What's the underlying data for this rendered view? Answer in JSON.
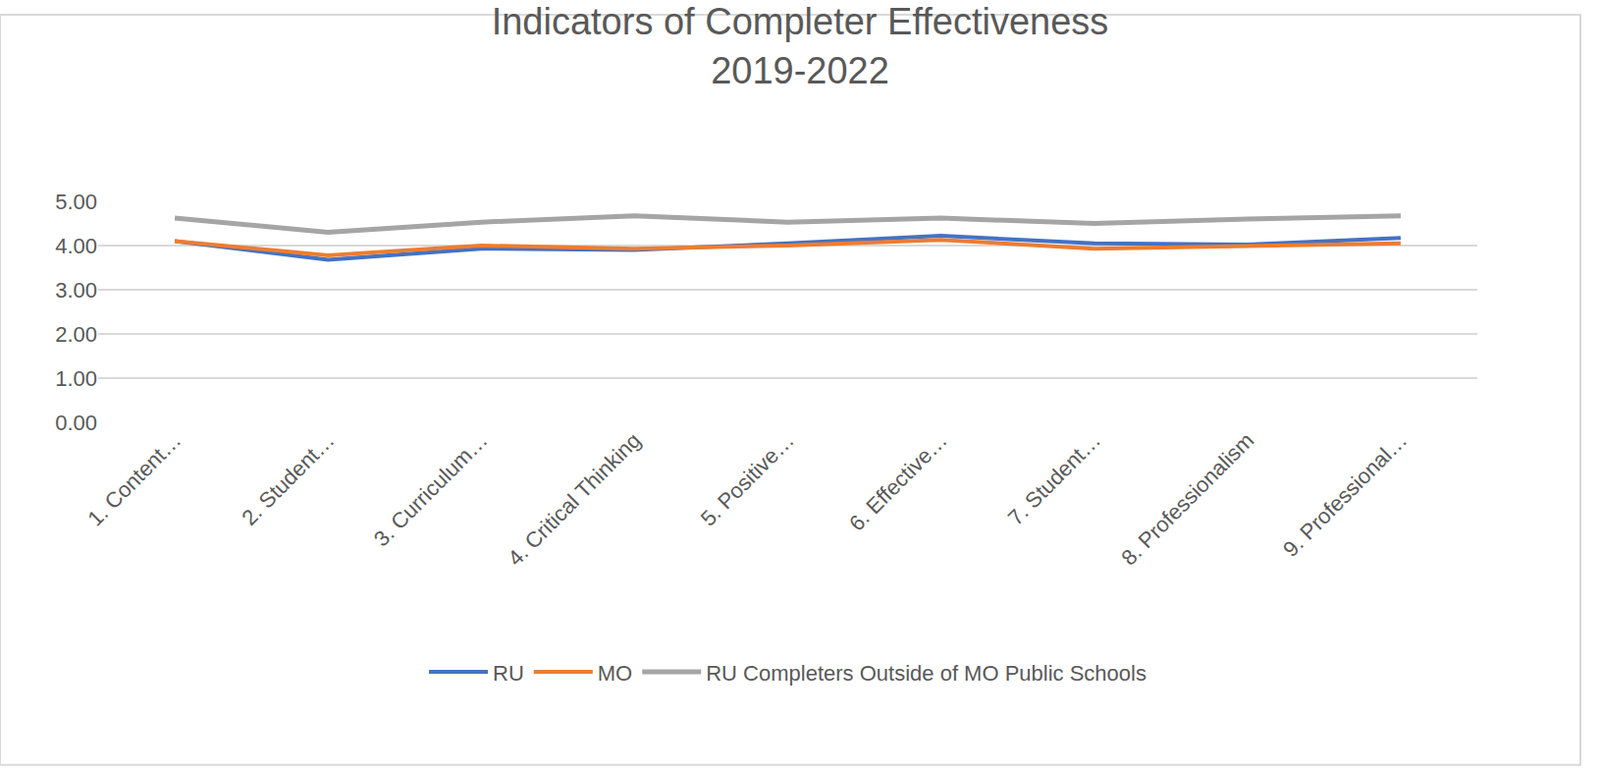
{
  "chart_data": {
    "type": "line",
    "title": "Indicators of Completer Effectiveness\n2019-2022",
    "categories": [
      "1. Content…",
      "2. Student…",
      "3. Curriculum…",
      "4. Critical Thinking",
      "5. Positive…",
      "6. Effective…",
      "7. Student…",
      "8. Professionalism",
      "9. Professional…"
    ],
    "series": [
      {
        "name": "RU",
        "color": "#4472c4",
        "values": [
          4.1,
          3.68,
          3.93,
          3.9,
          4.05,
          4.22,
          4.05,
          4.02,
          4.17
        ]
      },
      {
        "name": "MO",
        "color": "#ed7d31",
        "values": [
          4.1,
          3.78,
          4.0,
          3.93,
          4.0,
          4.13,
          3.93,
          4.0,
          4.05
        ]
      },
      {
        "name": "RU Completers Outside of MO Public Schools",
        "color": "#a5a5a5",
        "values": [
          4.62,
          4.3,
          4.53,
          4.67,
          4.53,
          4.62,
          4.5,
          4.6,
          4.67
        ]
      }
    ],
    "ylim": [
      0,
      5
    ],
    "yticks": [
      {
        "value": 0,
        "label": "0.00"
      },
      {
        "value": 1,
        "label": "1.00"
      },
      {
        "value": 2,
        "label": "2.00"
      },
      {
        "value": 3,
        "label": "3.00"
      },
      {
        "value": 4,
        "label": "4.00"
      },
      {
        "value": 5,
        "label": "5.00"
      }
    ],
    "grid": true,
    "legend": "bottom"
  }
}
